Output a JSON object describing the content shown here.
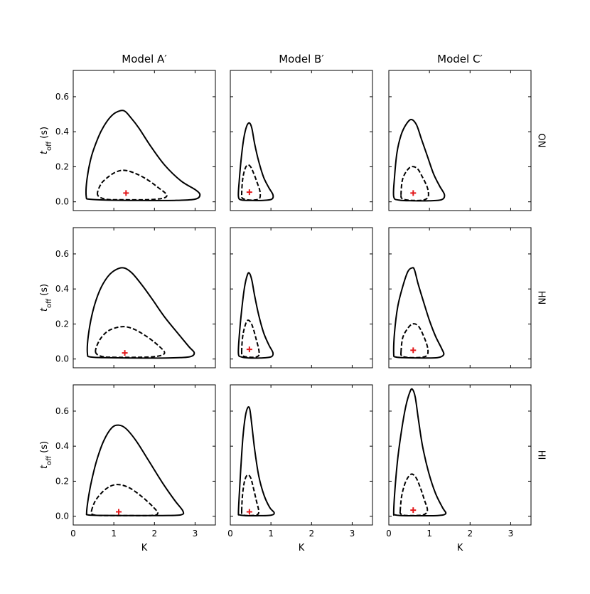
{
  "chart_data": {
    "type": "contour-grid",
    "column_titles": [
      "Model A′",
      "Model B′",
      "Model C′"
    ],
    "row_labels": [
      "ON",
      "HN",
      "HI"
    ],
    "xlabel": "K",
    "ylabel": "t",
    "ylabel_sub": "off",
    "ylabel_unit": " (s)",
    "xlim": [
      0,
      3.5
    ],
    "ylim": [
      -0.05,
      0.75
    ],
    "xticks": [
      0,
      1,
      2,
      3
    ],
    "xtick_labels": [
      "0",
      "1",
      "2",
      "3"
    ],
    "yticks": [
      0.0,
      0.2,
      0.4,
      0.6
    ],
    "ytick_labels": [
      "0.0",
      "0.2",
      "0.4",
      "0.6"
    ],
    "legend": "none",
    "colors": {
      "contour": "#000000",
      "best_fit": "#e31a1c"
    },
    "panels": [
      {
        "row": "ON",
        "model": "Model A′",
        "outer": [
          [
            0.32,
            0.03
          ],
          [
            0.34,
            0.13
          ],
          [
            0.45,
            0.26
          ],
          [
            0.62,
            0.37
          ],
          [
            0.75,
            0.43
          ],
          [
            0.9,
            0.48
          ],
          [
            1.05,
            0.51
          ],
          [
            1.25,
            0.52
          ],
          [
            1.42,
            0.48
          ],
          [
            1.62,
            0.42
          ],
          [
            1.9,
            0.32
          ],
          [
            2.25,
            0.21
          ],
          [
            2.65,
            0.12
          ],
          [
            3.0,
            0.07
          ],
          [
            3.12,
            0.04
          ],
          [
            3.0,
            0.015
          ],
          [
            2.5,
            0.008
          ],
          [
            1.5,
            0.008
          ],
          [
            0.8,
            0.01
          ],
          [
            0.4,
            0.015
          ]
        ],
        "inner": [
          [
            0.6,
            0.04
          ],
          [
            0.68,
            0.1
          ],
          [
            0.85,
            0.14
          ],
          [
            1.05,
            0.17
          ],
          [
            1.25,
            0.18
          ],
          [
            1.5,
            0.165
          ],
          [
            1.8,
            0.13
          ],
          [
            2.1,
            0.08
          ],
          [
            2.3,
            0.04
          ],
          [
            2.2,
            0.02
          ],
          [
            1.8,
            0.012
          ],
          [
            1.2,
            0.012
          ],
          [
            0.8,
            0.015
          ]
        ],
        "best": [
          1.3,
          0.05
        ]
      },
      {
        "row": "ON",
        "model": "Model B′",
        "outer": [
          [
            0.2,
            0.03
          ],
          [
            0.22,
            0.12
          ],
          [
            0.27,
            0.25
          ],
          [
            0.33,
            0.36
          ],
          [
            0.4,
            0.43
          ],
          [
            0.47,
            0.45
          ],
          [
            0.53,
            0.42
          ],
          [
            0.6,
            0.33
          ],
          [
            0.7,
            0.23
          ],
          [
            0.82,
            0.14
          ],
          [
            0.95,
            0.08
          ],
          [
            1.05,
            0.04
          ],
          [
            1.02,
            0.015
          ],
          [
            0.8,
            0.008
          ],
          [
            0.5,
            0.008
          ],
          [
            0.28,
            0.01
          ]
        ],
        "inner": [
          [
            0.28,
            0.04
          ],
          [
            0.3,
            0.12
          ],
          [
            0.35,
            0.18
          ],
          [
            0.42,
            0.21
          ],
          [
            0.5,
            0.2
          ],
          [
            0.58,
            0.16
          ],
          [
            0.66,
            0.11
          ],
          [
            0.73,
            0.06
          ],
          [
            0.72,
            0.02
          ],
          [
            0.58,
            0.01
          ],
          [
            0.4,
            0.012
          ],
          [
            0.3,
            0.02
          ]
        ],
        "best": [
          0.47,
          0.055
        ]
      },
      {
        "row": "ON",
        "model": "Model C′",
        "outer": [
          [
            0.12,
            0.03
          ],
          [
            0.14,
            0.14
          ],
          [
            0.2,
            0.28
          ],
          [
            0.3,
            0.38
          ],
          [
            0.42,
            0.44
          ],
          [
            0.55,
            0.47
          ],
          [
            0.68,
            0.44
          ],
          [
            0.8,
            0.36
          ],
          [
            0.95,
            0.26
          ],
          [
            1.1,
            0.16
          ],
          [
            1.25,
            0.09
          ],
          [
            1.37,
            0.04
          ],
          [
            1.3,
            0.012
          ],
          [
            1.0,
            0.006
          ],
          [
            0.6,
            0.006
          ],
          [
            0.25,
            0.01
          ]
        ],
        "inner": [
          [
            0.3,
            0.04
          ],
          [
            0.33,
            0.12
          ],
          [
            0.42,
            0.17
          ],
          [
            0.55,
            0.2
          ],
          [
            0.7,
            0.19
          ],
          [
            0.83,
            0.14
          ],
          [
            0.95,
            0.08
          ],
          [
            0.97,
            0.03
          ],
          [
            0.85,
            0.01
          ],
          [
            0.6,
            0.008
          ],
          [
            0.4,
            0.012
          ],
          [
            0.32,
            0.02
          ]
        ],
        "best": [
          0.6,
          0.05
        ]
      },
      {
        "row": "HN",
        "model": "Model A′",
        "outer": [
          [
            0.35,
            0.03
          ],
          [
            0.37,
            0.13
          ],
          [
            0.48,
            0.27
          ],
          [
            0.65,
            0.39
          ],
          [
            0.85,
            0.47
          ],
          [
            1.05,
            0.51
          ],
          [
            1.25,
            0.52
          ],
          [
            1.45,
            0.49
          ],
          [
            1.7,
            0.42
          ],
          [
            1.95,
            0.34
          ],
          [
            2.25,
            0.24
          ],
          [
            2.6,
            0.14
          ],
          [
            2.85,
            0.07
          ],
          [
            2.98,
            0.035
          ],
          [
            2.85,
            0.012
          ],
          [
            2.3,
            0.006
          ],
          [
            1.4,
            0.006
          ],
          [
            0.75,
            0.008
          ],
          [
            0.42,
            0.012
          ]
        ],
        "inner": [
          [
            0.55,
            0.04
          ],
          [
            0.63,
            0.1
          ],
          [
            0.8,
            0.15
          ],
          [
            1.0,
            0.175
          ],
          [
            1.25,
            0.185
          ],
          [
            1.5,
            0.17
          ],
          [
            1.8,
            0.13
          ],
          [
            2.08,
            0.08
          ],
          [
            2.25,
            0.035
          ],
          [
            2.05,
            0.015
          ],
          [
            1.6,
            0.01
          ],
          [
            1.0,
            0.01
          ],
          [
            0.7,
            0.015
          ]
        ],
        "best": [
          1.27,
          0.035
        ]
      },
      {
        "row": "HN",
        "model": "Model B′",
        "outer": [
          [
            0.2,
            0.03
          ],
          [
            0.22,
            0.13
          ],
          [
            0.28,
            0.28
          ],
          [
            0.35,
            0.41
          ],
          [
            0.42,
            0.48
          ],
          [
            0.47,
            0.49
          ],
          [
            0.53,
            0.45
          ],
          [
            0.6,
            0.36
          ],
          [
            0.7,
            0.25
          ],
          [
            0.82,
            0.15
          ],
          [
            0.95,
            0.08
          ],
          [
            1.05,
            0.035
          ],
          [
            1.0,
            0.012
          ],
          [
            0.75,
            0.006
          ],
          [
            0.45,
            0.006
          ],
          [
            0.27,
            0.012
          ]
        ],
        "inner": [
          [
            0.28,
            0.04
          ],
          [
            0.3,
            0.12
          ],
          [
            0.35,
            0.18
          ],
          [
            0.42,
            0.22
          ],
          [
            0.5,
            0.21
          ],
          [
            0.57,
            0.17
          ],
          [
            0.64,
            0.11
          ],
          [
            0.7,
            0.055
          ],
          [
            0.7,
            0.02
          ],
          [
            0.58,
            0.01
          ],
          [
            0.4,
            0.012
          ],
          [
            0.3,
            0.02
          ]
        ],
        "best": [
          0.47,
          0.055
        ]
      },
      {
        "row": "HN",
        "model": "Model C′",
        "outer": [
          [
            0.12,
            0.03
          ],
          [
            0.14,
            0.15
          ],
          [
            0.22,
            0.3
          ],
          [
            0.35,
            0.42
          ],
          [
            0.47,
            0.5
          ],
          [
            0.57,
            0.52
          ],
          [
            0.63,
            0.51
          ],
          [
            0.72,
            0.43
          ],
          [
            0.85,
            0.33
          ],
          [
            1.0,
            0.22
          ],
          [
            1.15,
            0.13
          ],
          [
            1.3,
            0.06
          ],
          [
            1.35,
            0.025
          ],
          [
            1.2,
            0.008
          ],
          [
            0.8,
            0.006
          ],
          [
            0.35,
            0.008
          ],
          [
            0.16,
            0.012
          ]
        ],
        "inner": [
          [
            0.3,
            0.04
          ],
          [
            0.34,
            0.12
          ],
          [
            0.45,
            0.17
          ],
          [
            0.58,
            0.2
          ],
          [
            0.72,
            0.19
          ],
          [
            0.84,
            0.14
          ],
          [
            0.95,
            0.07
          ],
          [
            0.95,
            0.025
          ],
          [
            0.82,
            0.01
          ],
          [
            0.55,
            0.008
          ],
          [
            0.38,
            0.012
          ],
          [
            0.31,
            0.02
          ]
        ],
        "best": [
          0.6,
          0.05
        ]
      },
      {
        "row": "HI",
        "model": "Model A′",
        "outer": [
          [
            0.33,
            0.02
          ],
          [
            0.37,
            0.1
          ],
          [
            0.45,
            0.2
          ],
          [
            0.58,
            0.32
          ],
          [
            0.75,
            0.43
          ],
          [
            0.95,
            0.505
          ],
          [
            1.12,
            0.52
          ],
          [
            1.3,
            0.5
          ],
          [
            1.55,
            0.43
          ],
          [
            1.85,
            0.32
          ],
          [
            2.2,
            0.19
          ],
          [
            2.5,
            0.09
          ],
          [
            2.7,
            0.03
          ],
          [
            2.65,
            0.008
          ],
          [
            2.2,
            0.004
          ],
          [
            1.3,
            0.004
          ],
          [
            0.6,
            0.005
          ],
          [
            0.36,
            0.008
          ]
        ],
        "inner": [
          [
            0.45,
            0.03
          ],
          [
            0.55,
            0.09
          ],
          [
            0.75,
            0.145
          ],
          [
            0.95,
            0.175
          ],
          [
            1.15,
            0.18
          ],
          [
            1.4,
            0.16
          ],
          [
            1.7,
            0.11
          ],
          [
            1.98,
            0.05
          ],
          [
            2.08,
            0.015
          ],
          [
            1.9,
            0.004
          ],
          [
            1.3,
            0.004
          ],
          [
            0.7,
            0.004
          ],
          [
            0.48,
            0.01
          ]
        ],
        "best": [
          1.12,
          0.025
        ]
      },
      {
        "row": "HI",
        "model": "Model B′",
        "outer": [
          [
            0.2,
            0.02
          ],
          [
            0.22,
            0.12
          ],
          [
            0.26,
            0.28
          ],
          [
            0.31,
            0.45
          ],
          [
            0.37,
            0.57
          ],
          [
            0.43,
            0.62
          ],
          [
            0.48,
            0.61
          ],
          [
            0.53,
            0.52
          ],
          [
            0.6,
            0.38
          ],
          [
            0.7,
            0.23
          ],
          [
            0.83,
            0.12
          ],
          [
            0.97,
            0.05
          ],
          [
            1.08,
            0.02
          ],
          [
            1.0,
            0.006
          ],
          [
            0.65,
            0.003
          ],
          [
            0.35,
            0.004
          ],
          [
            0.22,
            0.008
          ]
        ],
        "inner": [
          [
            0.28,
            0.03
          ],
          [
            0.3,
            0.12
          ],
          [
            0.35,
            0.2
          ],
          [
            0.42,
            0.235
          ],
          [
            0.5,
            0.22
          ],
          [
            0.57,
            0.16
          ],
          [
            0.64,
            0.09
          ],
          [
            0.7,
            0.03
          ],
          [
            0.66,
            0.008
          ],
          [
            0.5,
            0.004
          ],
          [
            0.35,
            0.005
          ],
          [
            0.29,
            0.012
          ]
        ],
        "best": [
          0.47,
          0.025
        ]
      },
      {
        "row": "HI",
        "model": "Model C′",
        "outer": [
          [
            0.12,
            0.02
          ],
          [
            0.15,
            0.15
          ],
          [
            0.22,
            0.33
          ],
          [
            0.32,
            0.5
          ],
          [
            0.42,
            0.63
          ],
          [
            0.52,
            0.71
          ],
          [
            0.58,
            0.725
          ],
          [
            0.65,
            0.68
          ],
          [
            0.73,
            0.55
          ],
          [
            0.83,
            0.4
          ],
          [
            0.98,
            0.25
          ],
          [
            1.15,
            0.13
          ],
          [
            1.32,
            0.05
          ],
          [
            1.4,
            0.015
          ],
          [
            1.2,
            0.004
          ],
          [
            0.7,
            0.003
          ],
          [
            0.3,
            0.004
          ],
          [
            0.15,
            0.008
          ]
        ],
        "inner": [
          [
            0.28,
            0.03
          ],
          [
            0.32,
            0.12
          ],
          [
            0.42,
            0.2
          ],
          [
            0.55,
            0.24
          ],
          [
            0.67,
            0.22
          ],
          [
            0.78,
            0.16
          ],
          [
            0.88,
            0.09
          ],
          [
            0.95,
            0.035
          ],
          [
            0.85,
            0.008
          ],
          [
            0.55,
            0.004
          ],
          [
            0.35,
            0.006
          ],
          [
            0.29,
            0.015
          ]
        ],
        "best": [
          0.6,
          0.035
        ]
      }
    ]
  }
}
